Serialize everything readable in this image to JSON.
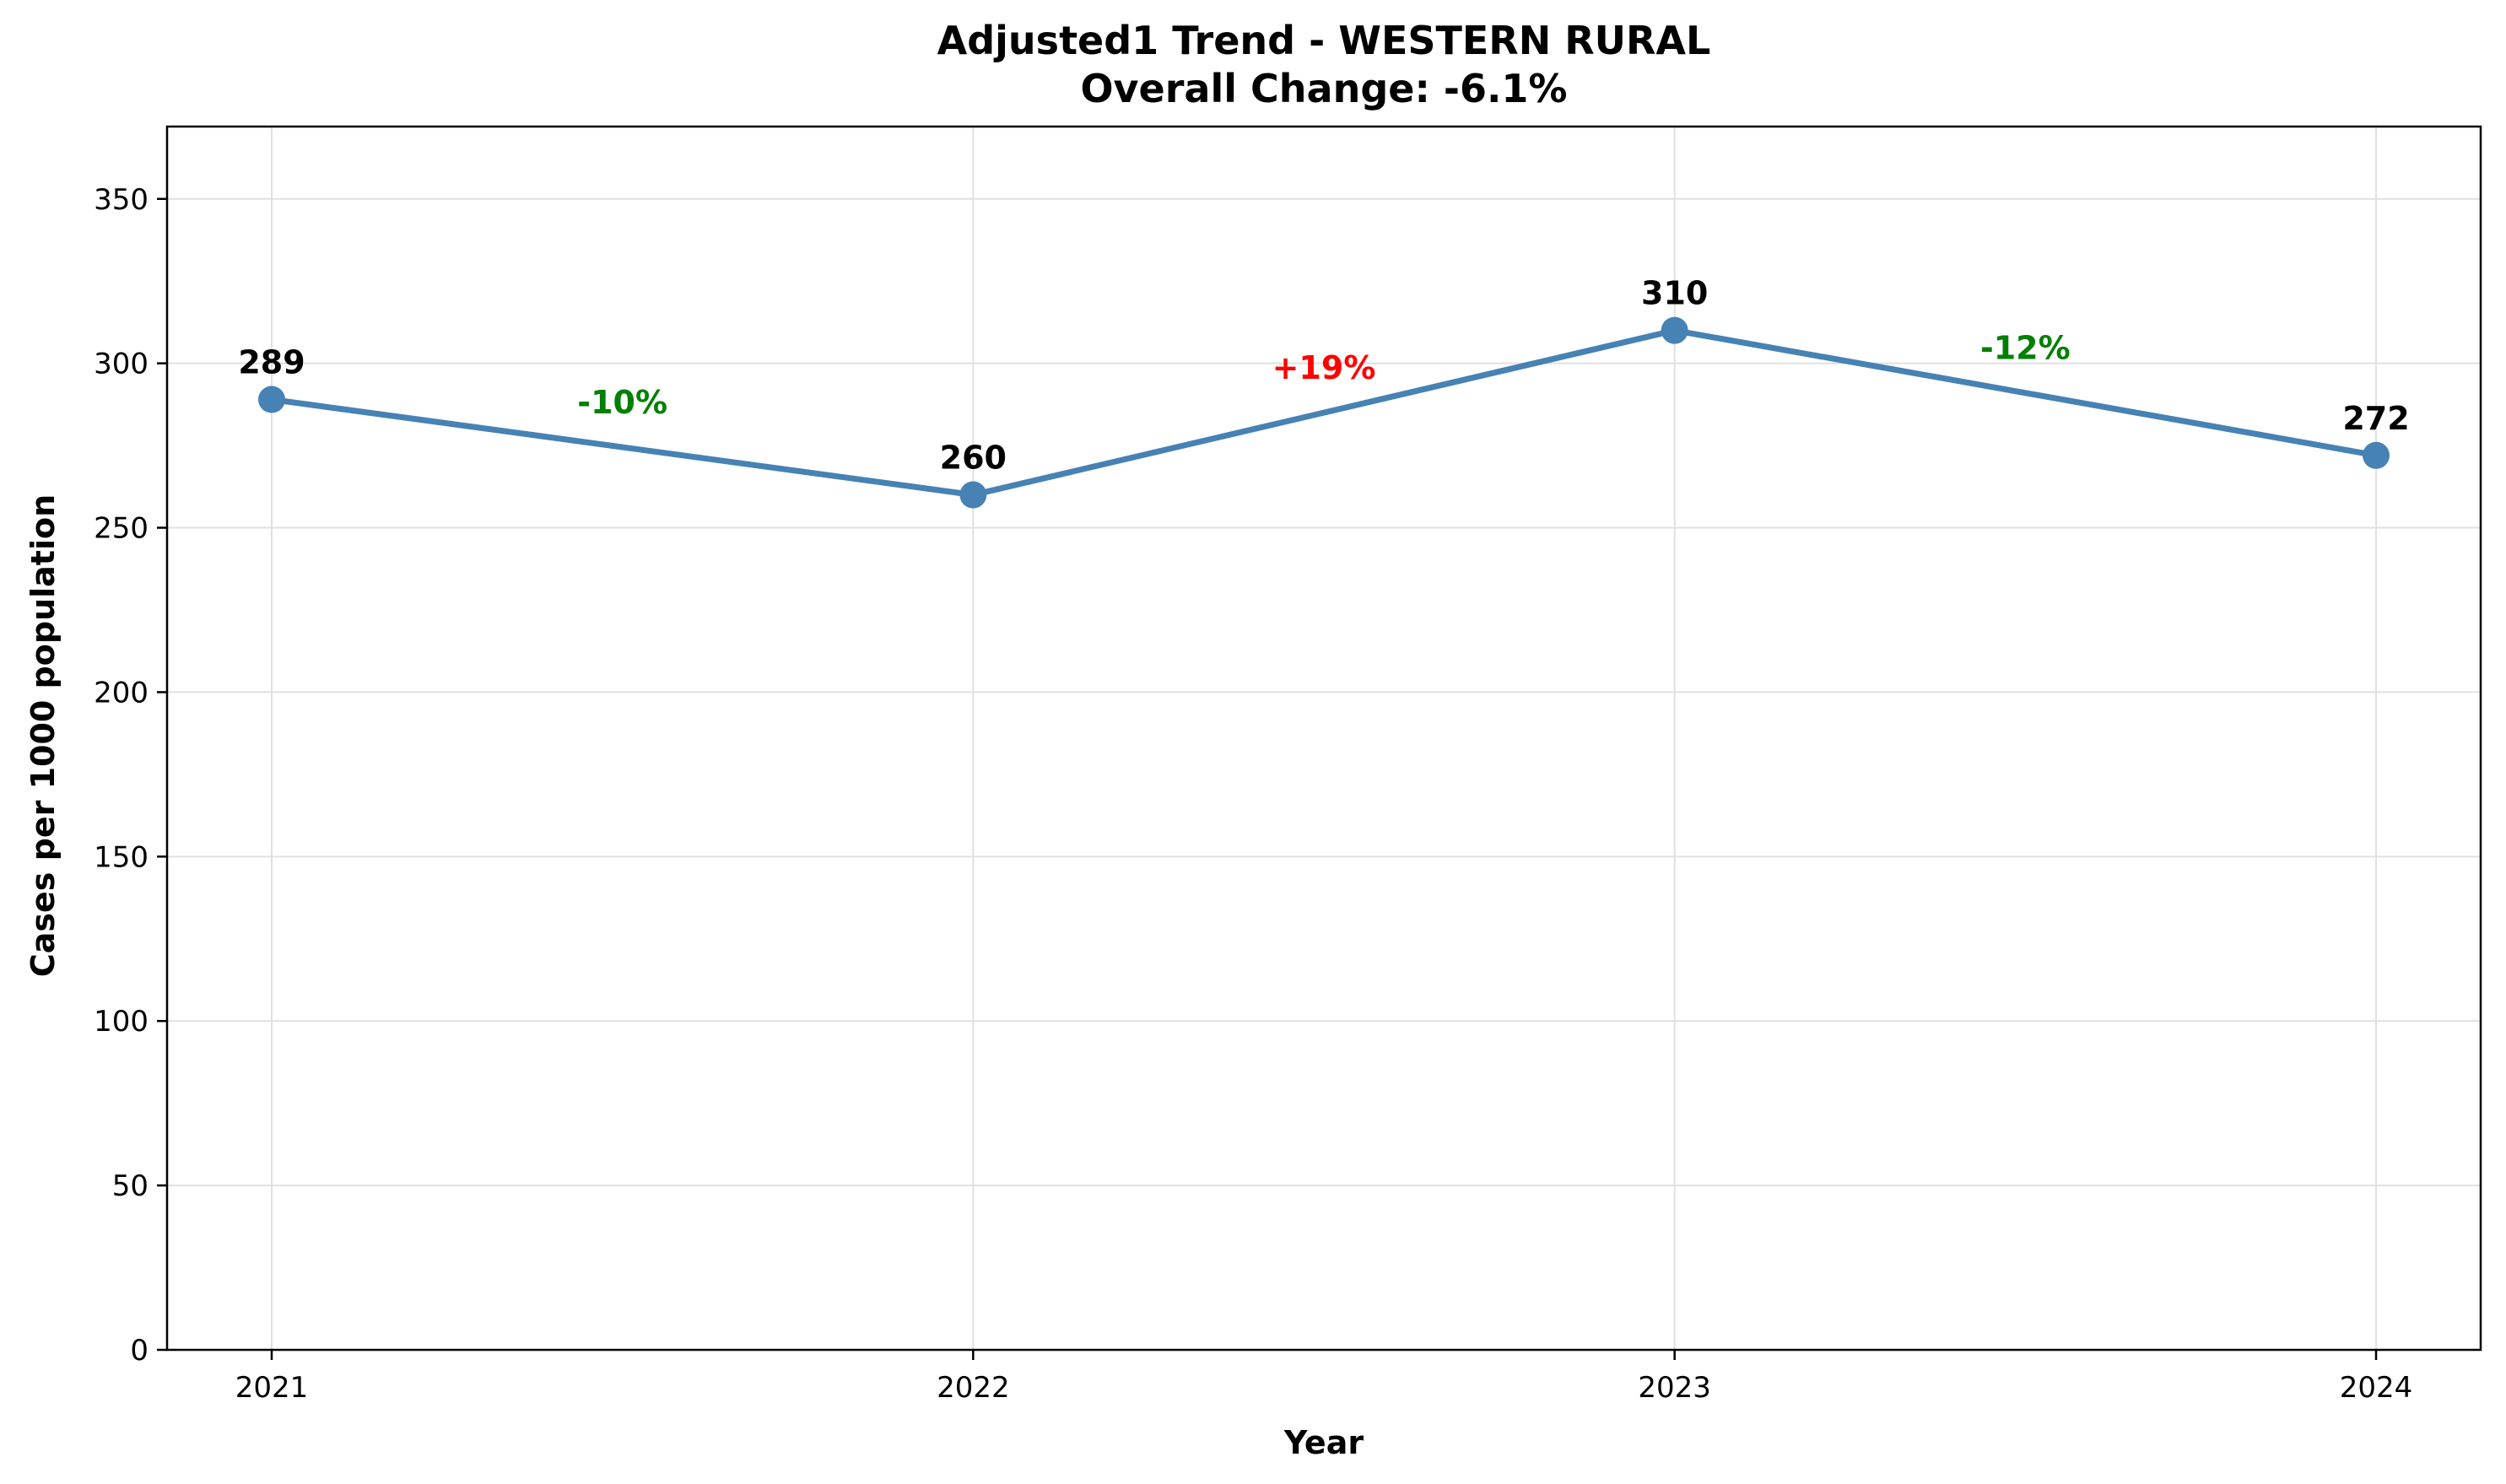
{
  "chart_data": {
    "type": "line",
    "title": "Adjusted1 Trend - WESTERN RURAL",
    "subtitle": "Overall Change: -6.1%",
    "xlabel": "Year",
    "ylabel": "Cases per 1000 population",
    "categories": [
      "2021",
      "2022",
      "2023",
      "2024"
    ],
    "values": [
      289,
      260,
      310,
      272
    ],
    "data_labels": [
      "289",
      "260",
      "310",
      "272"
    ],
    "ylim": [
      0,
      372
    ],
    "yticks": [
      0,
      50,
      100,
      150,
      200,
      250,
      300,
      350
    ],
    "grid": true,
    "changes": [
      {
        "label": "-10%",
        "color": "#008000"
      },
      {
        "label": "+19%",
        "color": "#ff0000"
      },
      {
        "label": "-12%",
        "color": "#008000"
      }
    ],
    "colors": {
      "line": "#4682b4",
      "axis": "#000000",
      "grid": "#e0e0e0"
    }
  }
}
